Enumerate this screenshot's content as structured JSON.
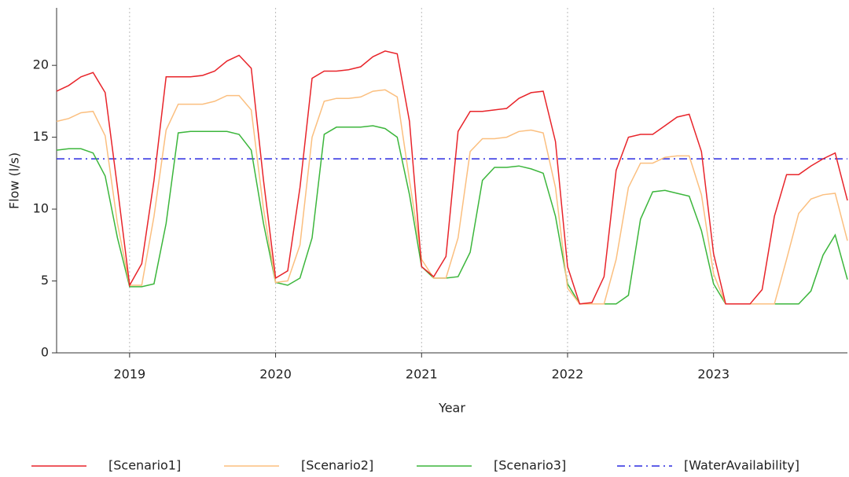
{
  "chart_data": {
    "type": "line",
    "x_label": "Year",
    "y_label": "Flow (l/s)",
    "x": [
      2018.5,
      2018.583,
      2018.667,
      2018.75,
      2018.833,
      2018.917,
      2019,
      2019.083,
      2019.167,
      2019.25,
      2019.333,
      2019.417,
      2019.5,
      2019.583,
      2019.667,
      2019.75,
      2019.833,
      2019.917,
      2020,
      2020.083,
      2020.167,
      2020.25,
      2020.333,
      2020.417,
      2020.5,
      2020.583,
      2020.667,
      2020.75,
      2020.833,
      2020.917,
      2021,
      2021.083,
      2021.167,
      2021.25,
      2021.333,
      2021.417,
      2021.5,
      2021.583,
      2021.667,
      2021.75,
      2021.833,
      2021.917,
      2022,
      2022.083,
      2022.167,
      2022.25,
      2022.333,
      2022.417,
      2022.5,
      2022.583,
      2022.667,
      2022.75,
      2022.833,
      2022.917,
      2023,
      2023.083,
      2023.167,
      2023.25,
      2023.333,
      2023.417,
      2023.5,
      2023.583,
      2023.667,
      2023.75,
      2023.833,
      2023.917
    ],
    "series": [
      {
        "name": "[Scenario1]",
        "color": "#e8242a",
        "values": [
          18.2,
          18.6,
          19.2,
          19.5,
          18.1,
          11.5,
          4.7,
          6.2,
          12,
          19.2,
          19.2,
          19.2,
          19.3,
          19.6,
          20.3,
          20.7,
          19.8,
          12,
          5.2,
          5.7,
          11.5,
          19.1,
          19.6,
          19.6,
          19.7,
          19.9,
          20.6,
          21,
          20.8,
          16.1,
          6,
          5.3,
          6.7,
          15.4,
          16.8,
          16.8,
          16.9,
          17,
          17.7,
          18.1,
          18.2,
          14.7,
          6,
          3.4,
          3.5,
          5.3,
          12.7,
          15,
          15.2,
          15.2,
          15.8,
          16.4,
          16.6,
          14,
          6.9,
          3.4,
          3.4,
          3.4,
          4.4,
          9.5,
          12.4,
          12.4,
          13,
          13.5,
          13.9,
          10.6
        ]
      },
      {
        "name": "[Scenario2]",
        "color": "#fbbf7f",
        "values": [
          16.1,
          16.3,
          16.7,
          16.8,
          15.1,
          9,
          4.7,
          4.7,
          9.5,
          15.5,
          17.3,
          17.3,
          17.3,
          17.5,
          17.9,
          17.9,
          16.9,
          10,
          4.9,
          5,
          7.5,
          15,
          17.5,
          17.7,
          17.7,
          17.8,
          18.2,
          18.3,
          17.8,
          12,
          6.5,
          5.2,
          5.2,
          8,
          14,
          14.9,
          14.9,
          15,
          15.4,
          15.5,
          15.3,
          11.5,
          4.5,
          3.4,
          3.4,
          3.4,
          6.5,
          11.5,
          13.2,
          13.2,
          13.6,
          13.7,
          13.7,
          11,
          5.5,
          3.4,
          3.4,
          3.4,
          3.4,
          3.4,
          6.5,
          9.7,
          10.7,
          11,
          11.1,
          7.8
        ]
      },
      {
        "name": "[Scenario3]",
        "color": "#3cb63c",
        "values": [
          14.1,
          14.2,
          14.2,
          13.9,
          12.3,
          8,
          4.6,
          4.6,
          4.8,
          9,
          15.3,
          15.4,
          15.4,
          15.4,
          15.4,
          15.2,
          14.1,
          9,
          4.9,
          4.7,
          5.2,
          8,
          15.2,
          15.7,
          15.7,
          15.7,
          15.8,
          15.6,
          15,
          11,
          6,
          5.2,
          5.2,
          5.3,
          7,
          12,
          12.9,
          12.9,
          13,
          12.8,
          12.5,
          9.5,
          4.8,
          3.4,
          3.4,
          3.4,
          3.4,
          4,
          9.3,
          11.2,
          11.3,
          11.1,
          10.9,
          8.5,
          4.8,
          3.4,
          3.4,
          3.4,
          3.4,
          3.4,
          3.4,
          3.4,
          4.3,
          6.8,
          8.2,
          5.1
        ]
      }
    ],
    "reference_lines": [
      {
        "name": "[WaterAvailability]",
        "value": 13.5,
        "color": "#2a2ae0",
        "dash": "dash-dot"
      }
    ],
    "xlim": [
      2018.5,
      2023.917
    ],
    "xticks": [
      2019,
      2020,
      2021,
      2022,
      2023
    ],
    "ylim": [
      0,
      24
    ],
    "yticks": [
      0,
      5,
      10,
      15,
      20
    ],
    "grid": "x",
    "legend": "bottom"
  }
}
